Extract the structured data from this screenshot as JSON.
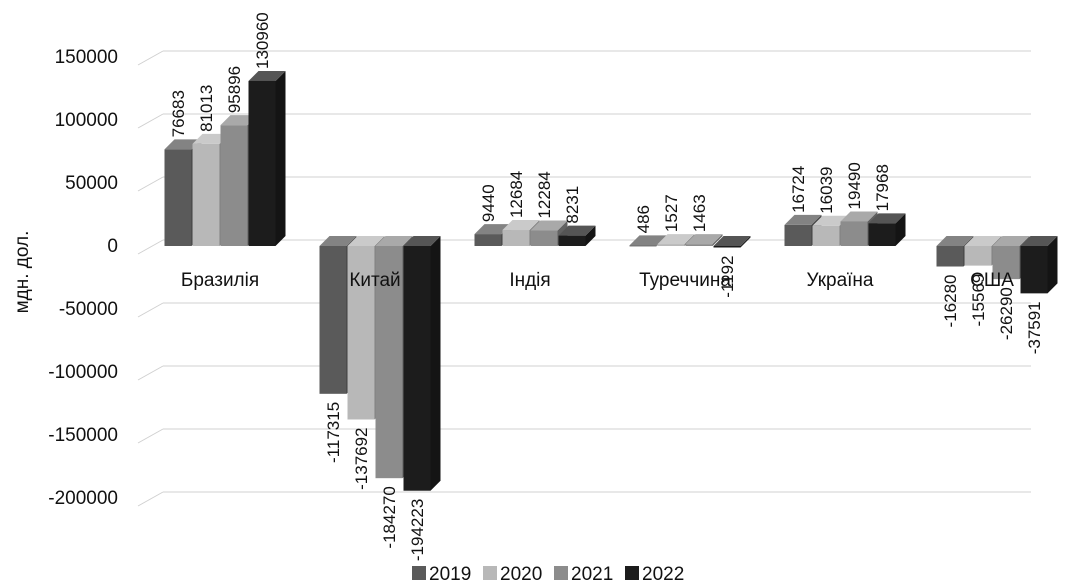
{
  "chart_data": {
    "type": "bar",
    "style": "3d-clustered-column",
    "categories": [
      "Бразилія",
      "Китай",
      "Індія",
      "Туреччина",
      "Україна",
      "США"
    ],
    "series": [
      {
        "name": "2019",
        "color": "#5a5a5a",
        "values": [
          76683,
          -117315,
          9440,
          486,
          16724,
          -16280
        ]
      },
      {
        "name": "2020",
        "color": "#b8b8b8",
        "values": [
          81013,
          -137692,
          12684,
          1527,
          16039,
          -15569
        ]
      },
      {
        "name": "2021",
        "color": "#8c8c8c",
        "values": [
          95896,
          -184270,
          12284,
          1463,
          19490,
          -26290
        ]
      },
      {
        "name": "2022",
        "color": "#1c1c1c",
        "values": [
          130960,
          -194223,
          8231,
          -1192,
          17968,
          -37591
        ]
      }
    ],
    "data_labels": {
      "2019": [
        "76683",
        "-117315",
        "9440",
        "486",
        "16724",
        "-16280"
      ],
      "2020": [
        "81013",
        "-137692",
        "12684",
        "1527",
        "16039",
        "-15569"
      ],
      "2021": [
        "95896",
        "-184270",
        "12284",
        "1463",
        "19490",
        "-26290"
      ],
      "2022": [
        "130960",
        "-194223",
        "8231",
        "-1192",
        "17968",
        "-37591"
      ]
    },
    "ylabel": "мдн. дол.",
    "ylim": [
      -200000,
      150000
    ],
    "yticks": [
      150000,
      100000,
      50000,
      0,
      -50000,
      -100000,
      -150000,
      -200000
    ],
    "ytick_labels": [
      "150000",
      "100000",
      "50000",
      "0",
      "-50000",
      "-100000",
      "-150000",
      "-200000"
    ],
    "grid": true,
    "legend": {
      "position": "bottom",
      "entries": [
        "2019",
        "2020",
        "2021",
        "2022"
      ]
    }
  }
}
